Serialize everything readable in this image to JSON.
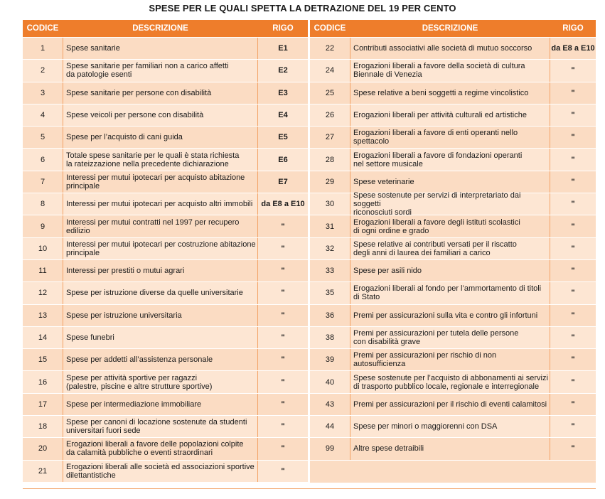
{
  "title": "SPESE PER LE QUALI SPETTA LA DETRAZIONE DEL 19 PER CENTO",
  "headers": {
    "code": "CODICE",
    "desc": "DESCRIZIONE",
    "rigo": "RIGO"
  },
  "left_rows": [
    {
      "code": "1",
      "desc": "Spese sanitarie",
      "rigo": "E1"
    },
    {
      "code": "2",
      "desc": "Spese sanitarie per familiari non a carico affetti\nda patologie esenti",
      "rigo": "E2"
    },
    {
      "code": "3",
      "desc": "Spese sanitarie per persone con disabilità",
      "rigo": "E3"
    },
    {
      "code": "4",
      "desc": "Spese veicoli per persone con disabilità",
      "rigo": "E4"
    },
    {
      "code": "5",
      "desc": "Spese per l’acquisto di cani guida",
      "rigo": "E5"
    },
    {
      "code": "6",
      "desc": "Totale spese sanitarie per le quali è stata richiesta\nla rateizzazione nella precedente dichiarazione",
      "rigo": "E6"
    },
    {
      "code": "7",
      "desc": "Interessi per mutui ipotecari per acquisto abitazione\nprincipale",
      "rigo": "E7"
    },
    {
      "code": "8",
      "desc": "Interessi per mutui ipotecari per acquisto altri immobili",
      "rigo": "da E8 a E10"
    },
    {
      "code": "9",
      "desc": "Interessi per mutui contratti nel 1997 per recupero edilizio",
      "rigo": "\""
    },
    {
      "code": "10",
      "desc": "Interessi per mutui ipotecari per costruzione abitazione\nprincipale",
      "rigo": "\""
    },
    {
      "code": "11",
      "desc": "Interessi per prestiti o mutui agrari",
      "rigo": "\""
    },
    {
      "code": "12",
      "desc": "Spese per istruzione diverse da quelle universitarie",
      "rigo": "\""
    },
    {
      "code": "13",
      "desc": "Spese per istruzione universitaria",
      "rigo": "\""
    },
    {
      "code": "14",
      "desc": "Spese funebri",
      "rigo": "\""
    },
    {
      "code": "15",
      "desc": "Spese per addetti all’assistenza personale",
      "rigo": "\""
    },
    {
      "code": "16",
      "desc": "Spese per attività sportive per ragazzi\n(palestre, piscine e altre strutture sportive)",
      "rigo": "\""
    },
    {
      "code": "17",
      "desc": "Spese per intermediazione immobiliare",
      "rigo": "\""
    },
    {
      "code": "18",
      "desc": "Spese per canoni di locazione sostenute da studenti\nuniversitari fuori sede",
      "rigo": "\""
    },
    {
      "code": "20",
      "desc": "Erogazioni liberali a favore delle popolazioni colpite\nda calamità pubbliche o eventi straordinari",
      "rigo": "\""
    },
    {
      "code": "21",
      "desc": "Erogazioni liberali alle società ed associazioni sportive\ndilettantistiche",
      "rigo": "\""
    }
  ],
  "right_rows": [
    {
      "code": "22",
      "desc": "Contributi associativi alle società di mutuo soccorso",
      "rigo": "da E8 a E10"
    },
    {
      "code": "24",
      "desc": "Erogazioni liberali a favore della società di cultura\nBiennale di Venezia",
      "rigo": "\""
    },
    {
      "code": "25",
      "desc": "Spese relative a beni soggetti a regime vincolistico",
      "rigo": "\""
    },
    {
      "code": "26",
      "desc": "Erogazioni liberali per attività culturali ed artistiche",
      "rigo": "\""
    },
    {
      "code": "27",
      "desc": "Erogazioni liberali a favore di enti operanti nello spettacolo",
      "rigo": "\""
    },
    {
      "code": "28",
      "desc": "Erogazioni liberali a favore di fondazioni operanti\nnel settore musicale",
      "rigo": "\""
    },
    {
      "code": "29",
      "desc": "Spese veterinarie",
      "rigo": "\""
    },
    {
      "code": "30",
      "desc": "Spese sostenute per servizi di interpretariato dai soggetti\nriconosciuti sordi",
      "rigo": "\""
    },
    {
      "code": "31",
      "desc": "Erogazioni liberali a favore degli istituti scolastici\ndi ogni ordine e grado",
      "rigo": "\""
    },
    {
      "code": "32",
      "desc": "Spese relative ai contributi versati per il riscatto\ndegli anni di laurea dei familiari a carico",
      "rigo": "\""
    },
    {
      "code": "33",
      "desc": "Spese per asili nido",
      "rigo": "\""
    },
    {
      "code": "35",
      "desc": "Erogazioni liberali al fondo per l’ammortamento di titoli\ndi Stato",
      "rigo": "\""
    },
    {
      "code": "36",
      "desc": "Premi per assicurazioni sulla vita e contro gli infortuni",
      "rigo": "\""
    },
    {
      "code": "38",
      "desc": "Premi per assicurazioni per tutela delle persone\ncon disabilità grave",
      "rigo": "\""
    },
    {
      "code": "39",
      "desc": "Premi per assicurazioni per rischio di non autosufficienza",
      "rigo": "\""
    },
    {
      "code": "40",
      "desc": "Spese sostenute per l’acquisto di abbonamenti ai servizi\ndi trasporto pubblico locale, regionale e interregionale",
      "rigo": "\""
    },
    {
      "code": "43",
      "desc": "Premi per assicurazioni per il rischio di eventi calamitosi",
      "rigo": "\""
    },
    {
      "code": "44",
      "desc": "Spese per minori o maggiorenni con DSA",
      "rigo": "\""
    },
    {
      "code": "99",
      "desc": "Altre spese detraibili",
      "rigo": "\""
    }
  ]
}
